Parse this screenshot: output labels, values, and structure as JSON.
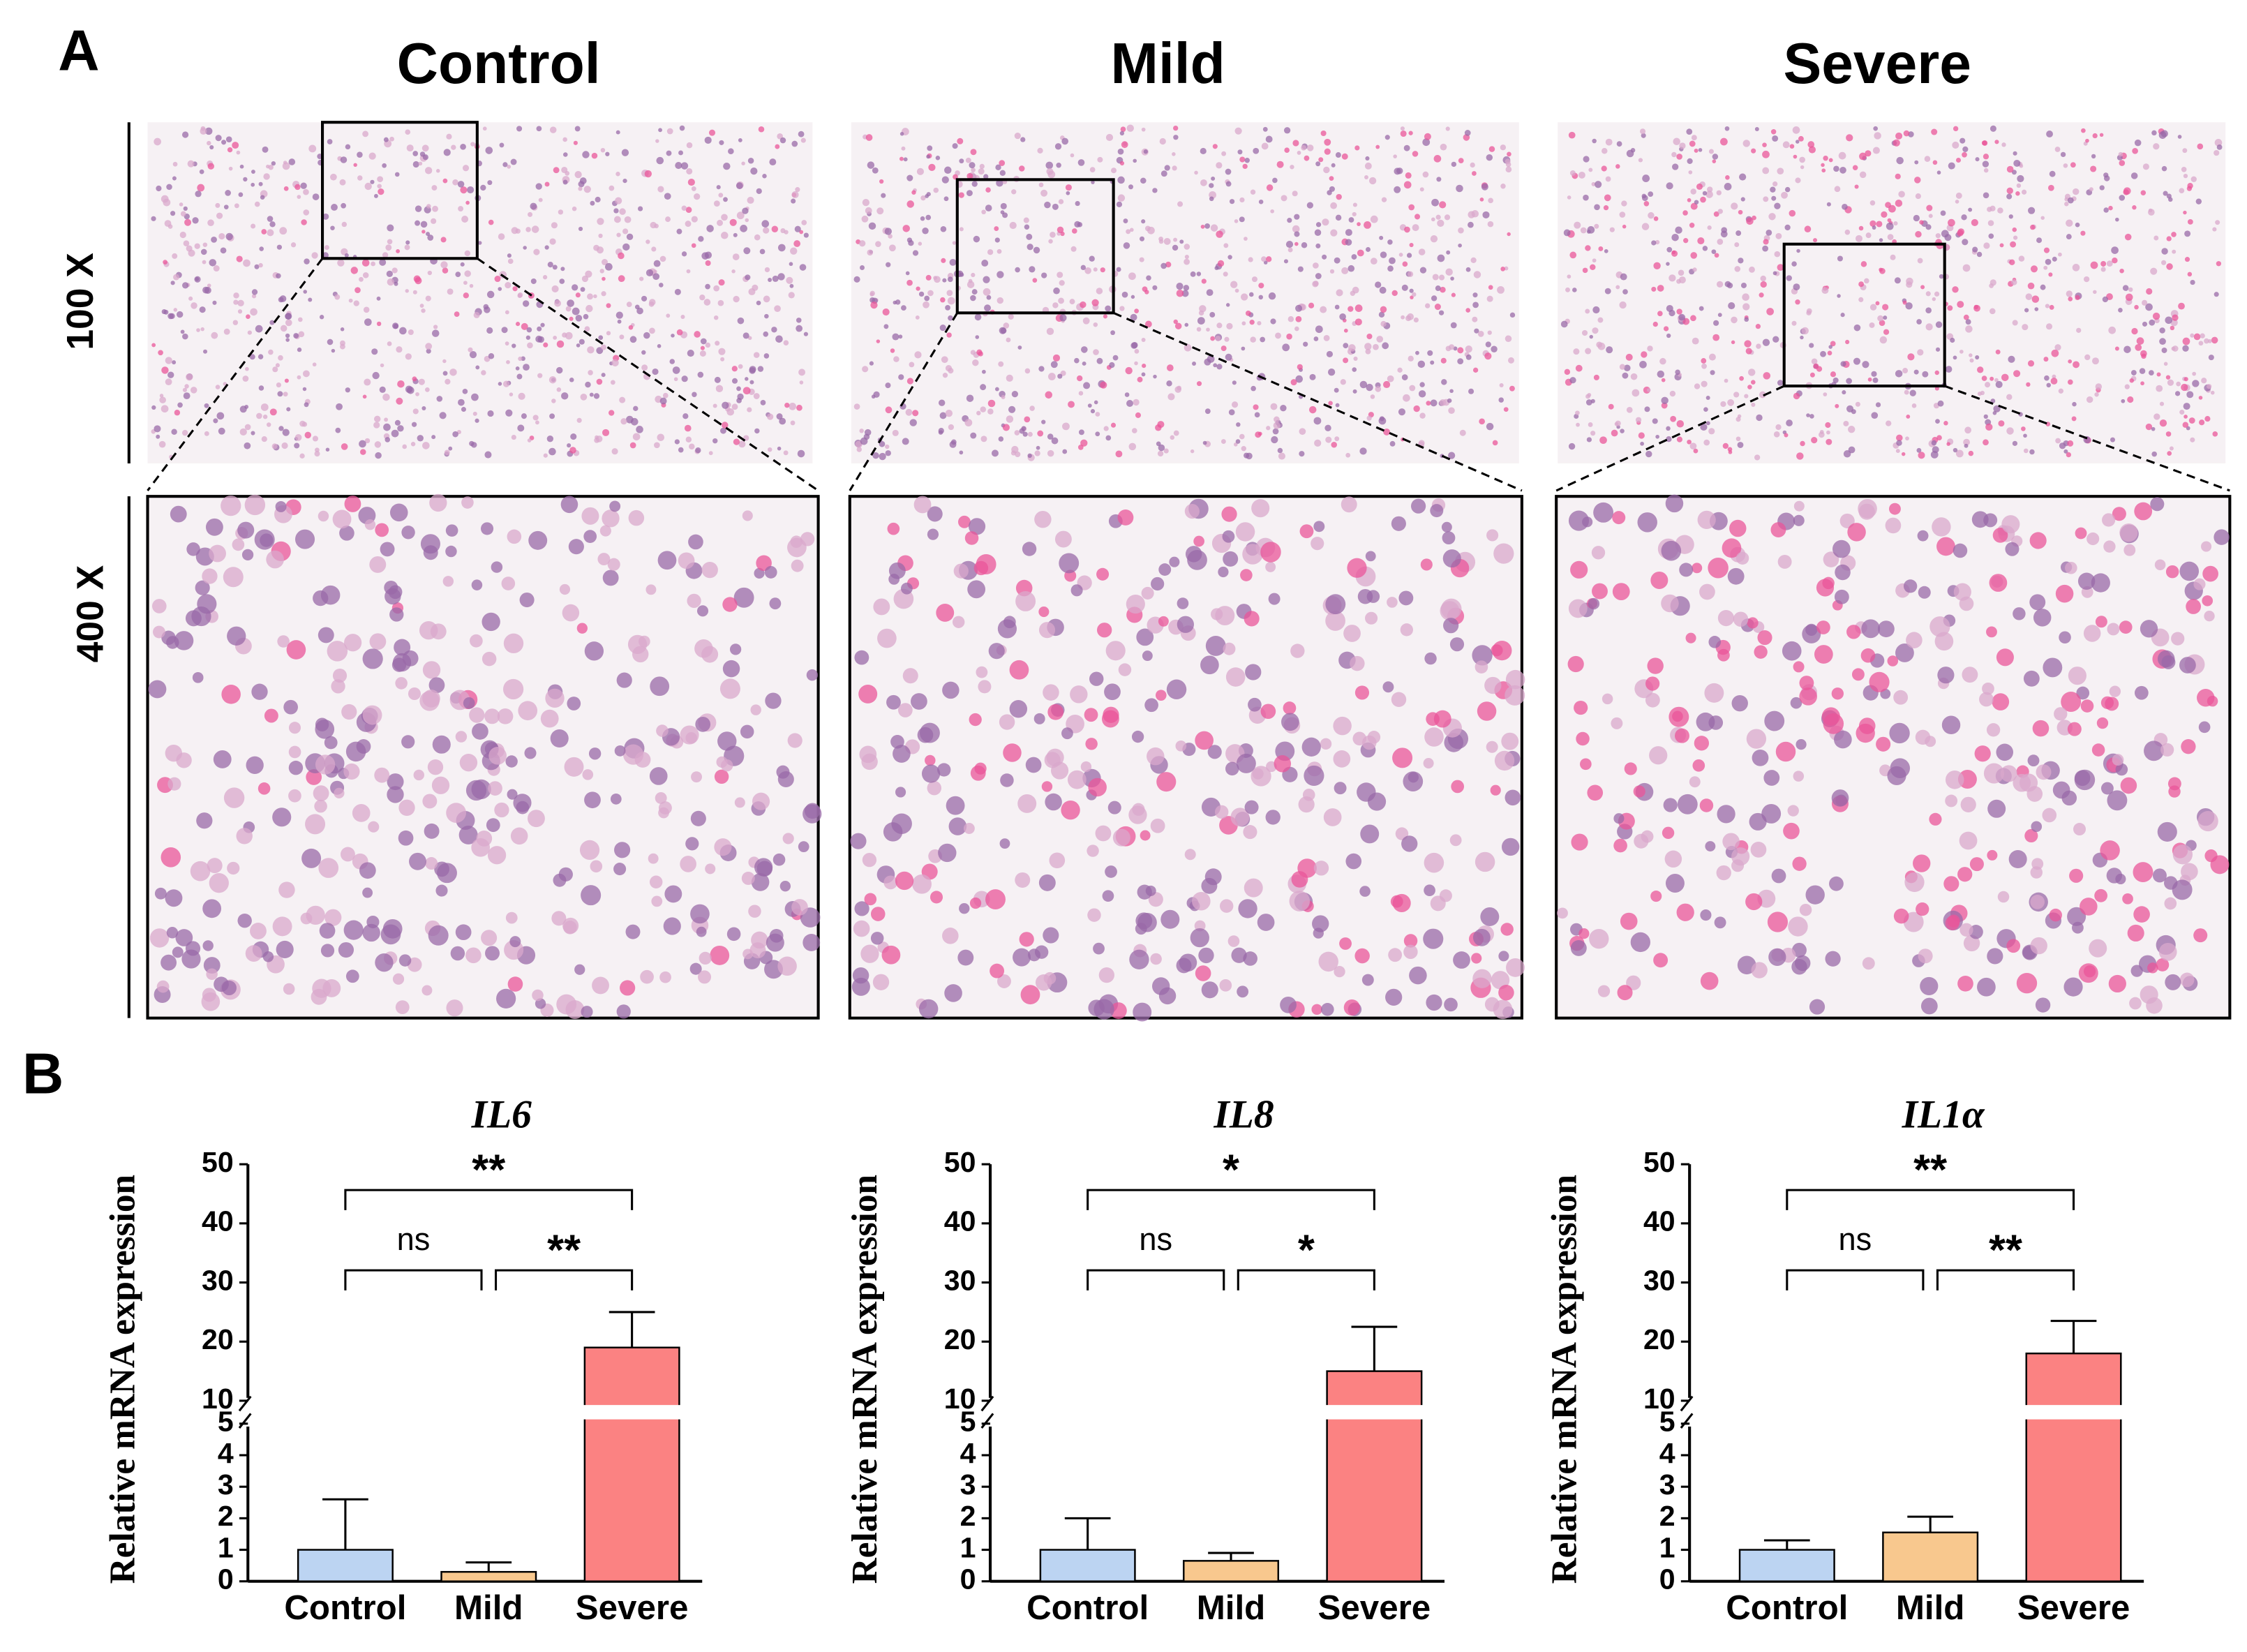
{
  "figure": {
    "panel_a_label": "A",
    "panel_b_label": "B",
    "columns": [
      "Control",
      "Mild",
      "Severe"
    ],
    "rows": [
      "100 X",
      "400 X"
    ]
  },
  "chart_data": [
    {
      "type": "bar",
      "title": "IL6",
      "ylabel": "Relative mRNA expression",
      "categories": [
        "Control",
        "Mild",
        "Severe"
      ],
      "values": [
        1,
        0.3,
        19
      ],
      "errors": [
        1.6,
        0.3,
        6
      ],
      "colors": [
        "#bcd4f2",
        "#f8c88e",
        "#fb8282"
      ],
      "ylim": [
        0,
        50
      ],
      "axis_break": [
        5,
        10
      ],
      "yticks": [
        0,
        1,
        2,
        3,
        4,
        5,
        10,
        20,
        30,
        40,
        50
      ],
      "comparisons": [
        {
          "from": 0,
          "to": 1,
          "label": "ns"
        },
        {
          "from": 1,
          "to": 2,
          "label": "**"
        },
        {
          "from": 0,
          "to": 2,
          "label": "**"
        }
      ]
    },
    {
      "type": "bar",
      "title": "IL8",
      "ylabel": "Relative mRNA expression",
      "categories": [
        "Control",
        "Mild",
        "Severe"
      ],
      "values": [
        1,
        0.65,
        15
      ],
      "errors": [
        1.0,
        0.25,
        7.5
      ],
      "colors": [
        "#bcd4f2",
        "#f8c88e",
        "#fb8282"
      ],
      "ylim": [
        0,
        50
      ],
      "axis_break": [
        5,
        10
      ],
      "yticks": [
        0,
        1,
        2,
        3,
        4,
        5,
        10,
        20,
        30,
        40,
        50
      ],
      "comparisons": [
        {
          "from": 0,
          "to": 1,
          "label": "ns"
        },
        {
          "from": 1,
          "to": 2,
          "label": "*"
        },
        {
          "from": 0,
          "to": 2,
          "label": "*"
        }
      ]
    },
    {
      "type": "bar",
      "title": "IL1α",
      "ylabel": "Relative mRNA expression",
      "categories": [
        "Control",
        "Mild",
        "Severe"
      ],
      "values": [
        1,
        1.55,
        18
      ],
      "errors": [
        0.3,
        0.5,
        5.5
      ],
      "colors": [
        "#bcd4f2",
        "#f8c88e",
        "#fb8282"
      ],
      "ylim": [
        0,
        50
      ],
      "axis_break": [
        5,
        10
      ],
      "yticks": [
        0,
        1,
        2,
        3,
        4,
        5,
        10,
        20,
        30,
        40,
        50
      ],
      "comparisons": [
        {
          "from": 0,
          "to": 1,
          "label": "ns"
        },
        {
          "from": 1,
          "to": 2,
          "label": "**"
        },
        {
          "from": 0,
          "to": 2,
          "label": "**"
        }
      ]
    }
  ]
}
